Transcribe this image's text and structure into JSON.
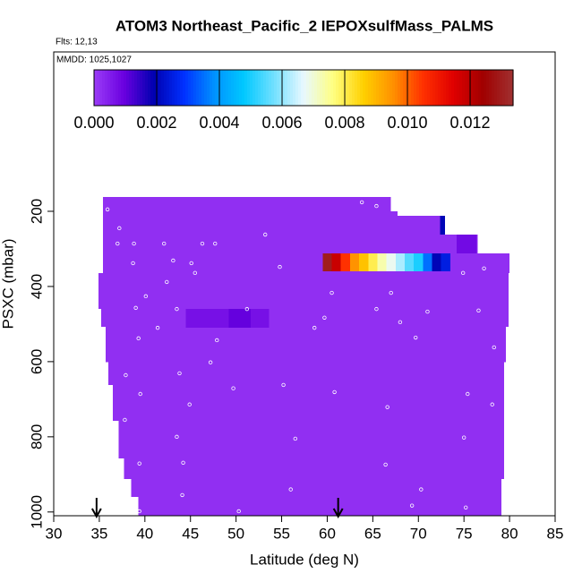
{
  "chart_data": {
    "type": "curtain",
    "title": "ATOM3 Northeast_Pacific_2 IEPOXsulfMass_PALMS",
    "flights": "Flts: 12,13",
    "dates": "MMDD: 1025,1027",
    "xlabel": "Latitude (deg N)",
    "ylabel": "PSXC (mbar)",
    "xlim": [
      30,
      85
    ],
    "xticks": [
      30,
      35,
      40,
      45,
      50,
      55,
      60,
      65,
      70,
      75,
      80,
      85
    ],
    "ylim": [
      1010,
      -224
    ],
    "yticks": [
      200,
      400,
      600,
      800,
      1000
    ],
    "clim": [
      0,
      0.01337
    ],
    "cticks": [
      {
        "value": 0,
        "label": "0.000"
      },
      {
        "value": 0.002,
        "label": "0.002"
      },
      {
        "value": 0.004,
        "label": "0.004"
      },
      {
        "value": 0.006,
        "label": "0.006"
      },
      {
        "value": 0.008,
        "label": "0.008"
      },
      {
        "value": 0.01,
        "label": "0.010"
      },
      {
        "value": 0.012,
        "label": "0.012"
      }
    ],
    "colorscale": [
      "#9b3cf7",
      "#6a00e0",
      "#0000b0",
      "#0030ff",
      "#0090ff",
      "#00c8ff",
      "#70e0ff",
      "#e8f8ff",
      "#ffff80",
      "#ffd000",
      "#ff9000",
      "#ff3000",
      "#e00000",
      "#a00000",
      "#a03030"
    ],
    "cells": [
      {
        "lat": [
          35.4,
          67.0
        ],
        "psxc": [
          162,
          200
        ],
        "value": 0.0002
      },
      {
        "lat": [
          35.4,
          67.7
        ],
        "psxc": [
          200,
          212
        ],
        "value": 0.0002
      },
      {
        "lat": [
          35.4,
          72.4
        ],
        "psxc": [
          212,
          262
        ],
        "value": 0.0002
      },
      {
        "lat": [
          35.4,
          76.5
        ],
        "psxc": [
          262,
          312
        ],
        "value": 0.0002
      },
      {
        "lat": [
          35.4,
          80.0
        ],
        "psxc": [
          312,
          364
        ],
        "value": 0.0002
      },
      {
        "lat": [
          34.9,
          79.9
        ],
        "psxc": [
          364,
          460
        ],
        "value": 0.0002
      },
      {
        "lat": [
          35.2,
          79.9
        ],
        "psxc": [
          460,
          507
        ],
        "value": 0.0002
      },
      {
        "lat": [
          35.7,
          79.6
        ],
        "psxc": [
          507,
          602
        ],
        "value": 0.0002
      },
      {
        "lat": [
          36.0,
          79.4
        ],
        "psxc": [
          602,
          662
        ],
        "value": 0.0002
      },
      {
        "lat": [
          36.5,
          79.4
        ],
        "psxc": [
          662,
          757
        ],
        "value": 0.0002
      },
      {
        "lat": [
          37.1,
          79.4
        ],
        "psxc": [
          757,
          857
        ],
        "value": 0.0002
      },
      {
        "lat": [
          37.7,
          79.4
        ],
        "psxc": [
          857,
          912
        ],
        "value": 0.0002
      },
      {
        "lat": [
          38.5,
          79.1
        ],
        "psxc": [
          912,
          960
        ],
        "value": 0.0002
      },
      {
        "lat": [
          39.3,
          79.1
        ],
        "psxc": [
          960,
          1010
        ],
        "value": 0.0002
      },
      {
        "lat": [
          72.4,
          72.9
        ],
        "psxc": [
          212,
          262
        ],
        "value": 0.002
      },
      {
        "lat": [
          74.2,
          76.4
        ],
        "psxc": [
          262,
          312
        ],
        "value": 0.0008
      },
      {
        "lat": [
          44.5,
          49.2
        ],
        "psxc": [
          460,
          510
        ],
        "value": 0.0007
      },
      {
        "lat": [
          49.2,
          51.6
        ],
        "psxc": [
          460,
          510
        ],
        "value": 0.001
      },
      {
        "lat": [
          51.6,
          53.6
        ],
        "psxc": [
          460,
          510
        ],
        "value": 0.0007
      },
      {
        "lat": [
          59.5,
          60.5
        ],
        "psxc": [
          312,
          360
        ],
        "value": 0.013
      },
      {
        "lat": [
          60.5,
          61.5
        ],
        "psxc": [
          312,
          360
        ],
        "value": 0.0118
      },
      {
        "lat": [
          61.5,
          62.5
        ],
        "psxc": [
          312,
          360
        ],
        "value": 0.0105
      },
      {
        "lat": [
          62.5,
          63.5
        ],
        "psxc": [
          312,
          360
        ],
        "value": 0.0095
      },
      {
        "lat": [
          63.5,
          64.5
        ],
        "psxc": [
          312,
          360
        ],
        "value": 0.0088
      },
      {
        "lat": [
          64.5,
          65.5
        ],
        "psxc": [
          312,
          360
        ],
        "value": 0.008
      },
      {
        "lat": [
          65.5,
          66.5
        ],
        "psxc": [
          312,
          360
        ],
        "value": 0.0073
      },
      {
        "lat": [
          66.5,
          67.5
        ],
        "psxc": [
          312,
          360
        ],
        "value": 0.0068
      },
      {
        "lat": [
          67.5,
          68.5
        ],
        "psxc": [
          312,
          360
        ],
        "value": 0.0062
      },
      {
        "lat": [
          68.5,
          69.5
        ],
        "psxc": [
          312,
          360
        ],
        "value": 0.0055
      },
      {
        "lat": [
          69.5,
          70.5
        ],
        "psxc": [
          312,
          360
        ],
        "value": 0.005
      },
      {
        "lat": [
          70.5,
          71.5
        ],
        "psxc": [
          312,
          360
        ],
        "value": 0.0035
      },
      {
        "lat": [
          71.5,
          72.5
        ],
        "psxc": [
          312,
          360
        ],
        "value": 0.002
      },
      {
        "lat": [
          72.5,
          73.5
        ],
        "psxc": [
          312,
          360
        ],
        "value": 0.0025
      }
    ],
    "points": {
      "lat": [
        35.9,
        37.2,
        37.0,
        38.8,
        42.1,
        46.3,
        47.7,
        53.2,
        63.8,
        65.4,
        38.7,
        43.1,
        45.1,
        42.4,
        45.5,
        54.8,
        77.2,
        74.9,
        60.5,
        67.0,
        40.1,
        39.0,
        43.5,
        51.2,
        59.7,
        65.4,
        71.0,
        76.6,
        41.4,
        58.6,
        68.0,
        39.3,
        47.9,
        69.7,
        78.3,
        47.2,
        37.9,
        43.8,
        39.5,
        49.7,
        55.2,
        60.8,
        75.4,
        37.8,
        44.9,
        66.6,
        78.1,
        43.5,
        56.5,
        75.0,
        39.4,
        44.2,
        66.4,
        56.0,
        70.3,
        44.1,
        39.4,
        50.3,
        69.3,
        75.2
      ],
      "psxc": [
        195,
        245,
        286,
        286,
        286,
        286,
        286,
        262,
        176,
        186,
        338,
        331,
        338,
        388,
        364,
        348,
        352,
        364,
        417,
        417,
        426,
        457,
        460,
        460,
        483,
        460,
        467,
        464,
        510,
        510,
        495,
        538,
        543,
        536,
        562,
        602,
        636,
        631,
        686,
        671,
        662,
        681,
        686,
        755,
        714,
        721,
        714,
        800,
        805,
        802,
        871,
        869,
        874,
        940,
        940,
        955,
        998,
        998,
        983,
        988
      ]
    },
    "arrow_lat": [
      34.7,
      61.2
    ]
  }
}
